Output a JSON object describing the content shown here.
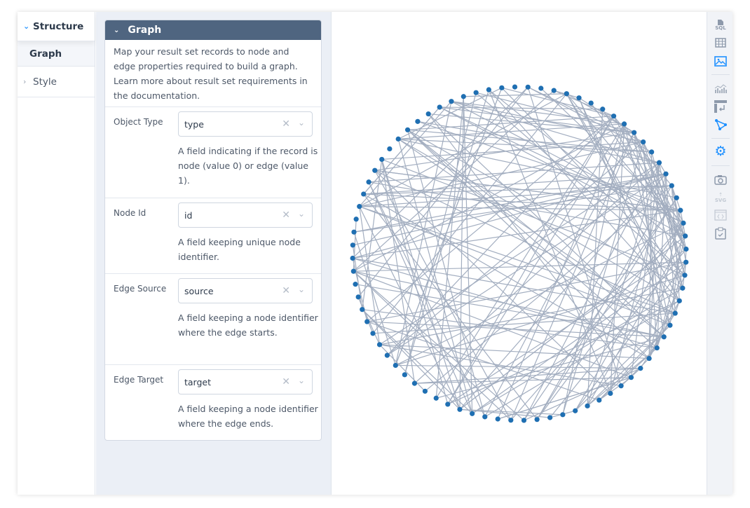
{
  "nav": {
    "structure": "Structure",
    "graph": "Graph",
    "style": "Style"
  },
  "panel": {
    "title": "Graph",
    "description": "Map your result set records to node and edge properties required to build a graph. Learn more about result set requirements in the documentation.",
    "fields": [
      {
        "label": "Object Type",
        "value": "type",
        "help": "A field indicating if the record is node (value 0) or edge (value 1)."
      },
      {
        "label": "Node Id",
        "value": "id",
        "help": "A field keeping unique node identifier."
      },
      {
        "label": "Edge Source",
        "value": "source",
        "help": "A field keeping a node identifier where the edge starts."
      },
      {
        "label": "Edge Target",
        "value": "target",
        "help": "A field keeping a node identifier where the edge ends."
      }
    ]
  },
  "toolbar": {
    "items": [
      "sql-icon",
      "table-icon",
      "image-icon",
      "chart-icon",
      "pivot-icon",
      "graph-icon",
      "settings-icon",
      "camera-icon",
      "svg-export-icon",
      "embed-code-icon",
      "clipboard-icon"
    ],
    "active": [
      "image-icon",
      "graph-icon",
      "settings-icon"
    ],
    "svg_label": "SVG",
    "sql_label": "SQL"
  },
  "colors": {
    "node": "#1f6fb2",
    "edge": "#a3aec0",
    "accent": "#1e90ff",
    "header": "#4f6580"
  }
}
